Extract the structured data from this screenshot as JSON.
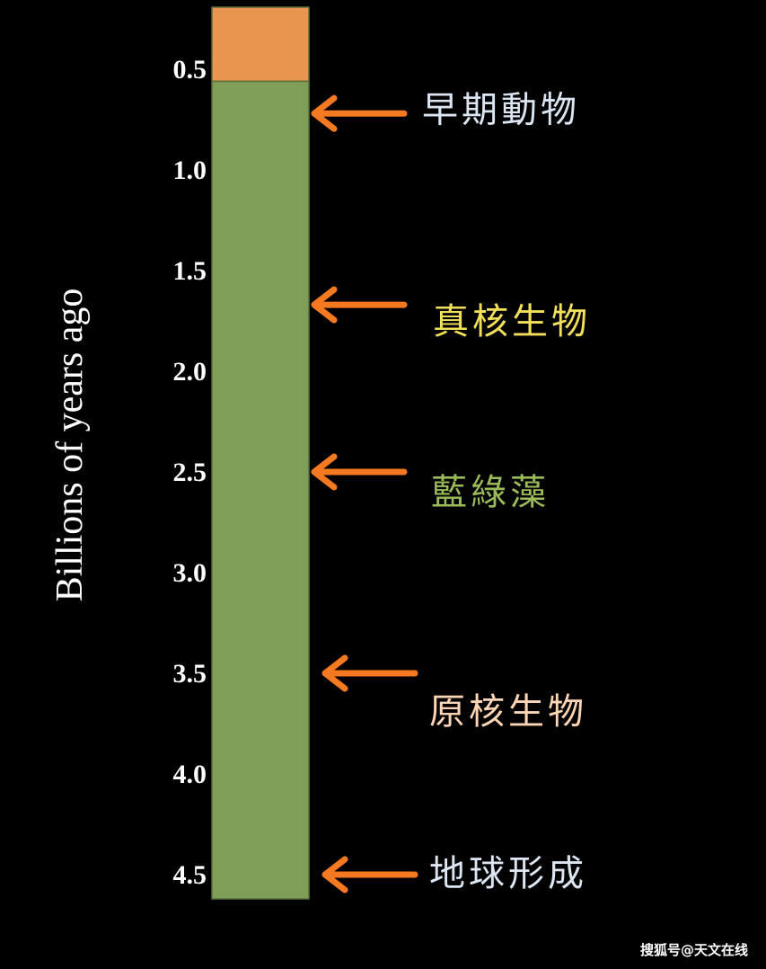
{
  "axis_label": "Billions of years ago",
  "ticks": [
    "0.5",
    "1.0",
    "1.5",
    "2.0",
    "2.5",
    "3.0",
    "3.5",
    "4.0",
    "4.5"
  ],
  "tick_values": [
    0.5,
    1.0,
    1.5,
    2.0,
    2.5,
    3.0,
    3.5,
    4.0,
    4.5
  ],
  "bar": {
    "segments": [
      {
        "from": 0.2,
        "to": 0.56,
        "color": "#e8964f"
      },
      {
        "from": 0.56,
        "to": 4.62,
        "color": "#7f9e58"
      }
    ]
  },
  "events": [
    {
      "label": "早期動物",
      "age": 0.72,
      "color": "#dce6f2"
    },
    {
      "label": "真核生物",
      "age": 1.67,
      "color": "#f2e05a"
    },
    {
      "label": "藍綠藻",
      "age": 2.5,
      "color": "#9bbb59"
    },
    {
      "label": "原核生物",
      "age": 3.5,
      "color": "#fcd5b4"
    },
    {
      "label": "地球形成",
      "age": 4.5,
      "color": "#dce6f2"
    }
  ],
  "arrow_color": "#f47920",
  "watermark": "搜狐号@天文在线"
}
